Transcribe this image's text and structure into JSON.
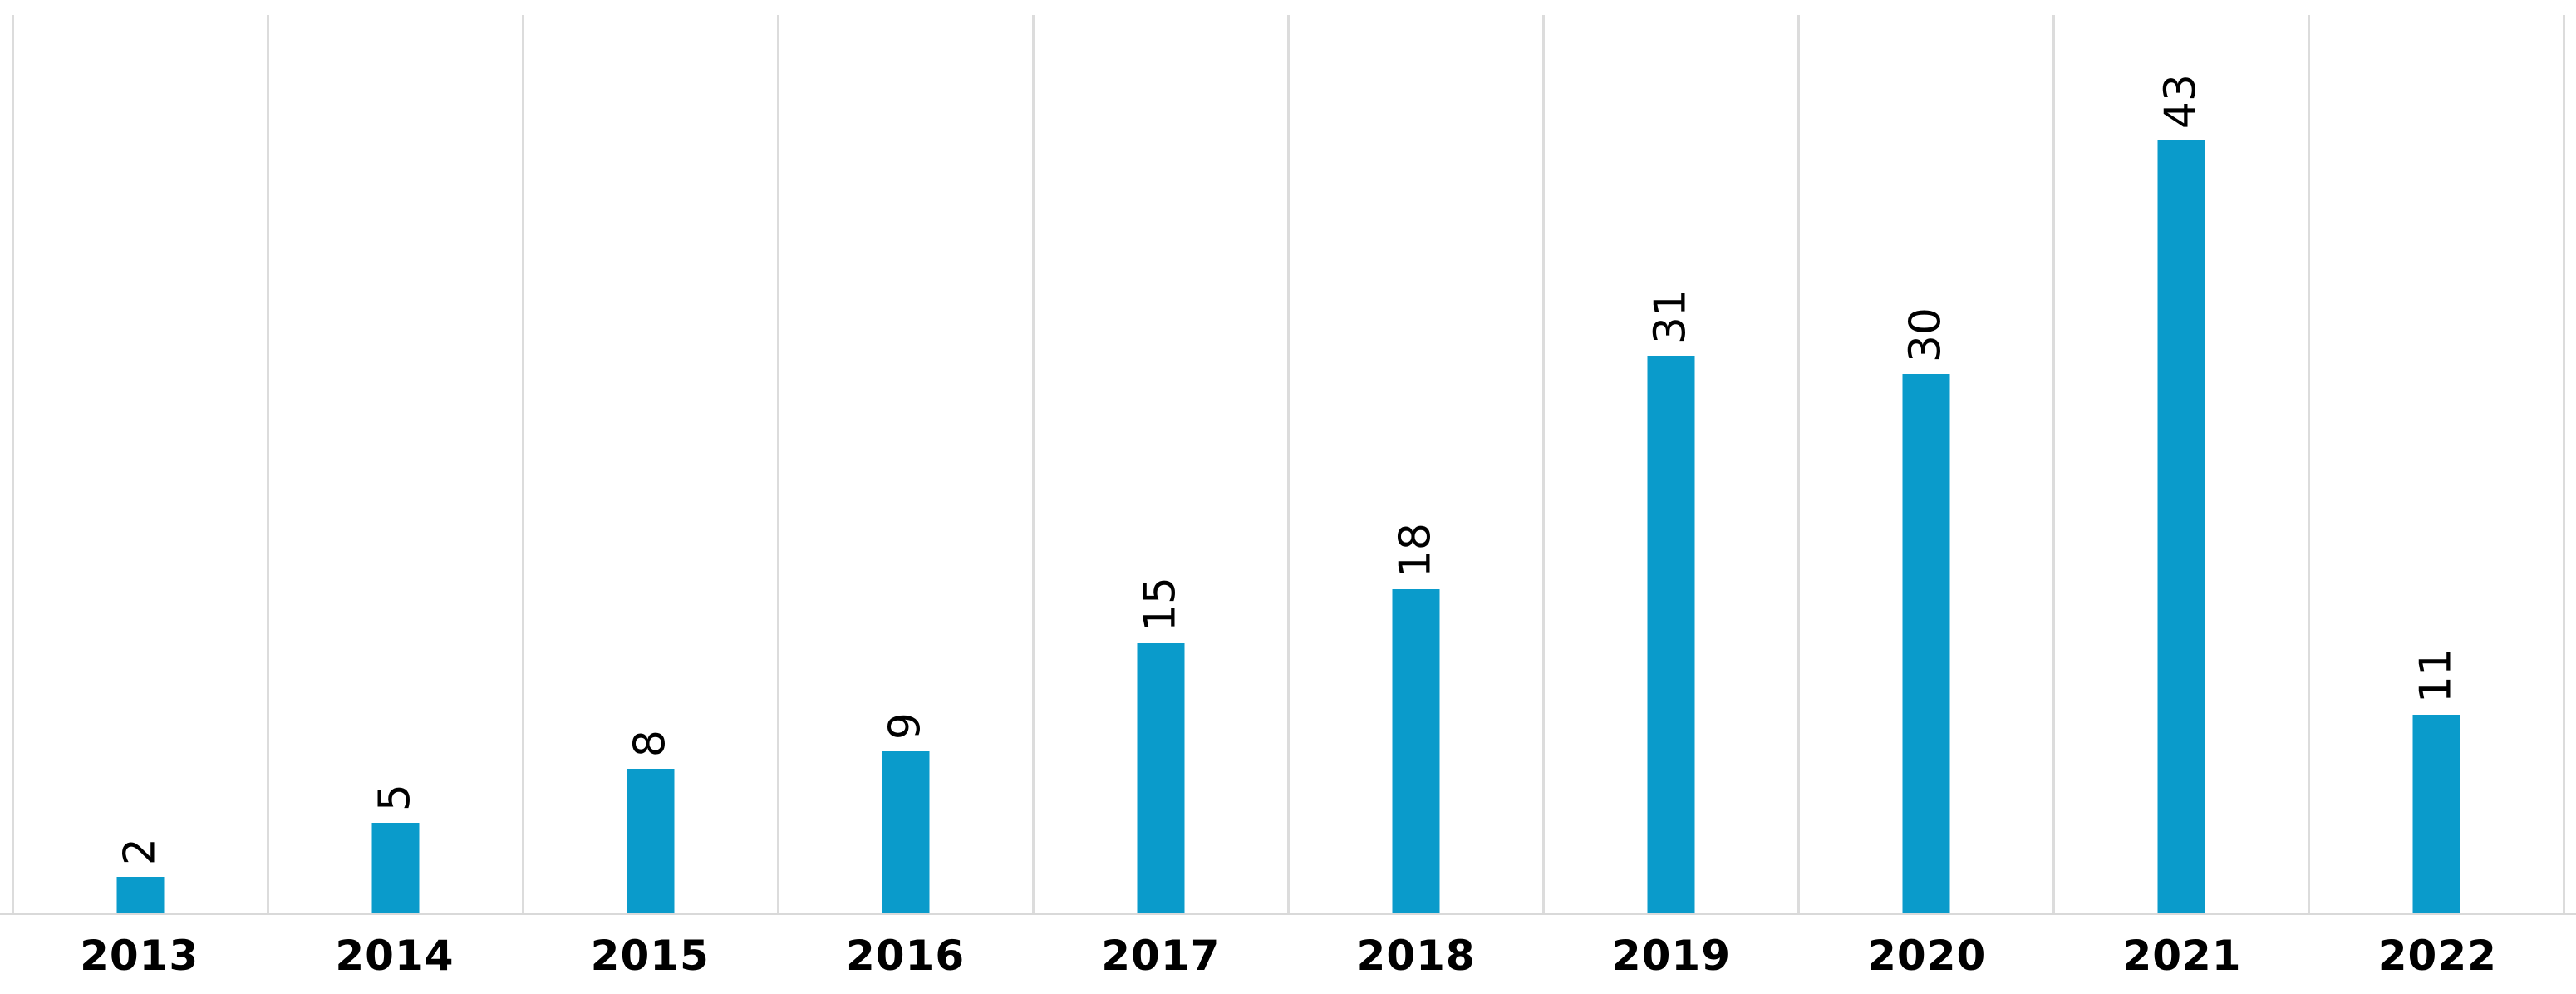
{
  "chart_data": {
    "type": "bar",
    "categories": [
      "2013",
      "2014",
      "2015",
      "2016",
      "2017",
      "2018",
      "2019",
      "2020",
      "2021",
      "2022"
    ],
    "values": [
      2,
      5,
      8,
      9,
      15,
      18,
      31,
      30,
      43,
      11
    ],
    "title": "",
    "xlabel": "",
    "ylabel": "",
    "ylim": [
      0,
      50
    ],
    "grid": "vertical-category-gridlines-only",
    "legend_position": "none",
    "data_label_rotation_degrees": -90,
    "colors": {
      "bar": "#0A9BCB",
      "gridline": "#DCDCDC",
      "axis_line": "#D9D9D9",
      "label_text": "#000000",
      "background": "#FFFFFF"
    }
  }
}
